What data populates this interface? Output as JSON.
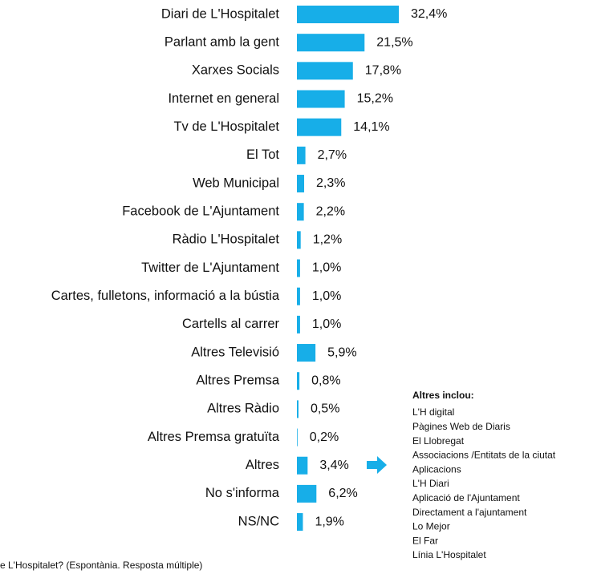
{
  "chart_data": {
    "type": "bar",
    "orientation": "horizontal",
    "color": "#17aee8",
    "categories": [
      "Diari de L'Hospitalet",
      "Parlant amb la gent",
      "Xarxes Socials",
      "Internet en general",
      "Tv de L'Hospitalet",
      "El Tot",
      "Web Municipal",
      "Facebook de L'Ajuntament",
      "Ràdio L'Hospitalet",
      "Twitter de L'Ajuntament",
      "Cartes, fulletons, informació a la bústia",
      "Cartells al carrer",
      "Altres Televisió",
      "Altres Premsa",
      "Altres Ràdio",
      "Altres Premsa gratuïta",
      "Altres",
      "No s'informa",
      "NS/NC"
    ],
    "values": [
      32.4,
      21.5,
      17.8,
      15.2,
      14.1,
      2.7,
      2.3,
      2.2,
      1.2,
      1.0,
      1.0,
      1.0,
      5.9,
      0.8,
      0.5,
      0.2,
      3.4,
      6.2,
      1.9
    ],
    "value_labels": [
      "32,4%",
      "21,5%",
      "17,8%",
      "15,2%",
      "14,1%",
      "2,7%",
      "2,3%",
      "2,2%",
      "1,2%",
      "1,0%",
      "1,0%",
      "1,0%",
      "5,9%",
      "0,8%",
      "0,5%",
      "0,2%",
      "3,4%",
      "6,2%",
      "1,9%"
    ],
    "footnote": "e L'Hospitalet? (Espontània. Resposta múltiple)",
    "note": {
      "title": "Altres inclou:",
      "items": [
        "L'H digital",
        "Pàgines Web de Diaris",
        "El Llobregat",
        "Associacions /Entitats de la ciutat",
        "Aplicacions",
        "L'H Diari",
        "Aplicació de l'Ajuntament",
        "Directament a l'ajuntament",
        "Lo Mejor",
        "El Far",
        "Línia L'Hospitalet"
      ]
    }
  }
}
